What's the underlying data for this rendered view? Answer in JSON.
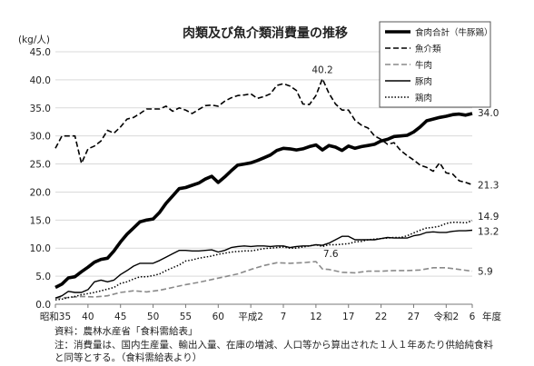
{
  "chart_data": {
    "type": "line",
    "title": "肉類及び魚介類消費量の推移",
    "ylabel": "(kg/人)",
    "xlabel": "年度",
    "ylim": [
      0,
      45
    ],
    "yticks": [
      "0.0",
      "5.0",
      "10.0",
      "15.0",
      "20.0",
      "25.0",
      "30.0",
      "35.0",
      "40.0",
      "45.0"
    ],
    "xlim": [
      1960,
      2024
    ],
    "xticks": [
      {
        "x": 1960,
        "label": "昭和35"
      },
      {
        "x": 1965,
        "label": "40"
      },
      {
        "x": 1970,
        "label": "45"
      },
      {
        "x": 1975,
        "label": "50"
      },
      {
        "x": 1980,
        "label": "55"
      },
      {
        "x": 1985,
        "label": "60"
      },
      {
        "x": 1990,
        "label": "平成2"
      },
      {
        "x": 1995,
        "label": "7"
      },
      {
        "x": 2000,
        "label": "12"
      },
      {
        "x": 2005,
        "label": "17"
      },
      {
        "x": 2010,
        "label": "22"
      },
      {
        "x": 2015,
        "label": "27"
      },
      {
        "x": 2020,
        "label": "令和2"
      },
      {
        "x": 2024,
        "label": "6"
      }
    ],
    "grid": true,
    "legend_position": "top-right",
    "series": [
      {
        "name": "食肉合計（牛豚鶏）",
        "color": "#000000",
        "style": "thick-solid",
        "x": [
          1960,
          1961,
          1962,
          1963,
          1964,
          1965,
          1966,
          1967,
          1968,
          1969,
          1970,
          1971,
          1972,
          1973,
          1974,
          1975,
          1976,
          1977,
          1978,
          1979,
          1980,
          1981,
          1982,
          1983,
          1984,
          1985,
          1986,
          1987,
          1988,
          1989,
          1990,
          1991,
          1992,
          1993,
          1994,
          1995,
          1996,
          1997,
          1998,
          1999,
          2000,
          2001,
          2002,
          2003,
          2004,
          2005,
          2006,
          2007,
          2008,
          2009,
          2010,
          2011,
          2012,
          2013,
          2014,
          2015,
          2016,
          2017,
          2018,
          2019,
          2020,
          2021,
          2022,
          2023,
          2024
        ],
        "values": [
          3.0,
          3.6,
          4.7,
          4.9,
          5.8,
          6.6,
          7.5,
          8.0,
          8.2,
          9.5,
          11.1,
          12.5,
          13.6,
          14.7,
          15.0,
          15.2,
          16.4,
          18.0,
          19.3,
          20.6,
          20.8,
          21.2,
          21.6,
          22.3,
          22.8,
          21.7,
          22.7,
          23.8,
          24.8,
          25.0,
          25.2,
          25.6,
          26.1,
          26.6,
          27.4,
          27.8,
          27.7,
          27.5,
          27.7,
          28.1,
          28.4,
          27.5,
          28.3,
          28.0,
          27.4,
          28.2,
          27.8,
          28.1,
          28.3,
          28.5,
          29.1,
          29.4,
          29.9,
          30.0,
          30.1,
          30.7,
          31.6,
          32.7,
          33.0,
          33.3,
          33.5,
          33.8,
          33.9,
          33.7,
          34.0
        ],
        "end_label": "34.0"
      },
      {
        "name": "魚介類",
        "color": "#000000",
        "style": "dashed",
        "x": [
          1960,
          1961,
          1962,
          1963,
          1964,
          1965,
          1966,
          1967,
          1968,
          1969,
          1970,
          1971,
          1972,
          1973,
          1974,
          1975,
          1976,
          1977,
          1978,
          1979,
          1980,
          1981,
          1982,
          1983,
          1984,
          1985,
          1986,
          1987,
          1988,
          1989,
          1990,
          1991,
          1992,
          1993,
          1994,
          1995,
          1996,
          1997,
          1998,
          1999,
          2000,
          2001,
          2002,
          2003,
          2004,
          2005,
          2006,
          2007,
          2008,
          2009,
          2010,
          2011,
          2012,
          2013,
          2014,
          2015,
          2016,
          2017,
          2018,
          2019,
          2020,
          2021,
          2022,
          2023,
          2024
        ],
        "values": [
          27.8,
          30.0,
          30.0,
          30.0,
          25.1,
          27.7,
          28.2,
          29.1,
          31.0,
          30.5,
          31.6,
          33.0,
          33.3,
          34.0,
          34.8,
          34.8,
          34.8,
          35.3,
          34.4,
          35.0,
          34.6,
          34.0,
          34.7,
          35.4,
          35.5,
          35.3,
          36.2,
          36.8,
          37.2,
          37.3,
          37.5,
          36.7,
          37.0,
          37.5,
          39.0,
          39.3,
          38.9,
          38.1,
          35.7,
          35.6,
          37.2,
          40.2,
          37.6,
          35.7,
          34.6,
          34.6,
          32.8,
          31.9,
          31.4,
          30.0,
          29.4,
          28.5,
          28.8,
          27.4,
          26.5,
          25.7,
          24.8,
          24.4,
          23.7,
          25.2,
          23.4,
          23.2,
          22.0,
          21.7,
          21.3
        ],
        "peak_label": "40.2",
        "end_label": "21.3"
      },
      {
        "name": "牛肉",
        "color": "#8a8a8a",
        "style": "dashed",
        "x": [
          1960,
          1962,
          1964,
          1966,
          1968,
          1970,
          1972,
          1974,
          1976,
          1978,
          1980,
          1982,
          1984,
          1986,
          1988,
          1990,
          1992,
          1994,
          1996,
          1998,
          2000,
          2001,
          2002,
          2004,
          2006,
          2008,
          2010,
          2012,
          2014,
          2016,
          2018,
          2020,
          2022,
          2024
        ],
        "values": [
          1.1,
          1.2,
          1.4,
          1.3,
          1.5,
          2.1,
          2.4,
          2.2,
          2.5,
          3.0,
          3.5,
          3.9,
          4.4,
          4.9,
          5.4,
          6.2,
          6.9,
          7.4,
          7.3,
          7.4,
          7.6,
          6.3,
          6.2,
          5.7,
          5.6,
          5.9,
          5.9,
          6.0,
          6.0,
          6.1,
          6.5,
          6.5,
          6.2,
          5.9
        ],
        "peak_label": "7.6",
        "end_label": "5.9"
      },
      {
        "name": "豚肉",
        "color": "#000000",
        "style": "thin-solid",
        "x": [
          1960,
          1961,
          1962,
          1963,
          1964,
          1965,
          1966,
          1967,
          1968,
          1969,
          1970,
          1971,
          1972,
          1973,
          1974,
          1975,
          1976,
          1977,
          1978,
          1979,
          1980,
          1981,
          1982,
          1983,
          1984,
          1985,
          1986,
          1987,
          1988,
          1989,
          1990,
          1991,
          1992,
          1993,
          1994,
          1995,
          1996,
          1997,
          1998,
          1999,
          2000,
          2001,
          2002,
          2003,
          2004,
          2005,
          2006,
          2007,
          2008,
          2009,
          2010,
          2011,
          2012,
          2013,
          2014,
          2015,
          2016,
          2017,
          2018,
          2019,
          2020,
          2021,
          2022,
          2023,
          2024
        ],
        "values": [
          1.1,
          1.5,
          2.3,
          2.1,
          2.1,
          2.6,
          4.0,
          4.3,
          4.0,
          4.3,
          5.3,
          6.0,
          6.8,
          7.3,
          7.3,
          7.3,
          7.8,
          8.4,
          9.0,
          9.6,
          9.6,
          9.5,
          9.5,
          9.6,
          9.7,
          9.3,
          9.6,
          10.1,
          10.3,
          10.4,
          10.3,
          10.4,
          10.4,
          10.3,
          10.4,
          10.4,
          10.1,
          10.3,
          10.4,
          10.4,
          10.6,
          10.5,
          10.9,
          11.5,
          12.1,
          12.1,
          11.5,
          11.5,
          11.5,
          11.5,
          11.7,
          11.9,
          11.8,
          11.8,
          11.8,
          12.2,
          12.4,
          12.8,
          12.9,
          12.8,
          12.8,
          13.0,
          13.1,
          13.1,
          13.2
        ],
        "end_label": "13.2"
      },
      {
        "name": "鶏肉",
        "color": "#000000",
        "style": "dotted",
        "x": [
          1960,
          1961,
          1962,
          1963,
          1964,
          1965,
          1966,
          1967,
          1968,
          1969,
          1970,
          1971,
          1972,
          1973,
          1974,
          1975,
          1976,
          1977,
          1978,
          1979,
          1980,
          1981,
          1982,
          1983,
          1984,
          1985,
          1986,
          1987,
          1988,
          1989,
          1990,
          1991,
          1992,
          1993,
          1994,
          1995,
          1996,
          1997,
          1998,
          1999,
          2000,
          2001,
          2002,
          2003,
          2004,
          2005,
          2006,
          2007,
          2008,
          2009,
          2010,
          2011,
          2012,
          2013,
          2014,
          2015,
          2016,
          2017,
          2018,
          2019,
          2020,
          2021,
          2022,
          2023,
          2024
        ],
        "values": [
          0.8,
          0.9,
          1.2,
          1.4,
          1.7,
          1.9,
          2.1,
          2.4,
          2.7,
          3.0,
          3.7,
          4.0,
          4.5,
          4.9,
          4.9,
          5.1,
          5.4,
          6.0,
          6.5,
          7.0,
          7.7,
          7.9,
          8.2,
          8.4,
          8.6,
          8.9,
          9.1,
          9.3,
          9.4,
          9.5,
          9.5,
          9.7,
          9.9,
          10.0,
          10.1,
          10.2,
          10.0,
          10.0,
          10.2,
          10.4,
          10.6,
          10.3,
          10.6,
          10.6,
          10.7,
          10.8,
          11.1,
          11.2,
          11.5,
          11.6,
          11.7,
          11.8,
          11.9,
          11.9,
          12.2,
          12.7,
          13.2,
          13.6,
          13.7,
          13.9,
          14.4,
          14.6,
          14.6,
          14.5,
          14.9
        ],
        "end_label": "14.9"
      }
    ]
  },
  "notes": {
    "line1": "資料：農林水産省「食料需給表」",
    "line2": "注：消費量は、国内生産量、輸出入量、在庫の増減、人口等から算出された１人１年あたり供給純食料",
    "line3": "と同等とする。（食料需給表より）"
  }
}
